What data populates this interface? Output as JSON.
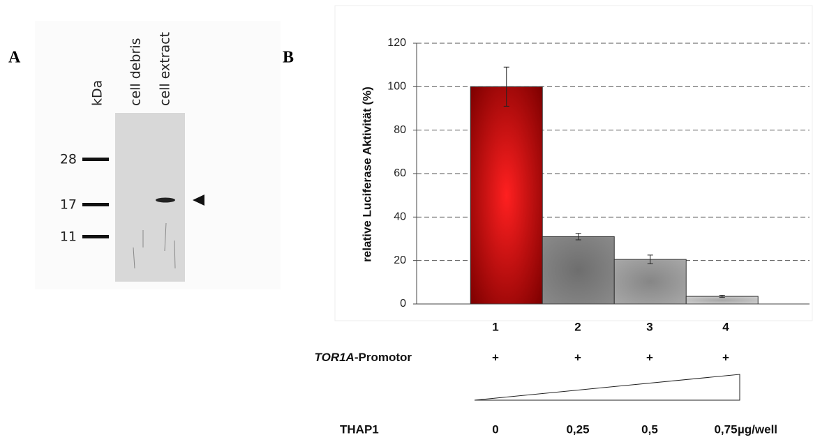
{
  "panel_a": {
    "label": "A",
    "lanes": [
      "kDa",
      "cell debris",
      "cell extract"
    ],
    "markers": [
      "28",
      "17",
      "11"
    ]
  },
  "chart_data": {
    "type": "bar",
    "panel_label": "B",
    "y_label": "relative Luciferase Aktivität (%)",
    "categories": [
      "1",
      "2",
      "3",
      "4"
    ],
    "values": [
      100,
      31,
      20.5,
      3.5
    ],
    "errors": [
      9,
      1.5,
      2,
      0.5
    ],
    "colors": [
      "#d00000",
      "#8a8a8a",
      "#a8a8a8",
      "#d0d0d0"
    ],
    "ylim": [
      0,
      120
    ],
    "yticks": [
      0,
      20,
      40,
      60,
      80,
      100,
      120
    ],
    "grid": true
  },
  "conditions": {
    "promoter_gene": "TOR1A",
    "promoter_suffix": "-Promotor",
    "promoter": [
      "+",
      "+",
      "+",
      "+"
    ],
    "thap1_label": "THAP1",
    "thap1": [
      "0",
      "0,25",
      "0,5",
      "0,75"
    ],
    "thap1_unit": "µg/well"
  }
}
